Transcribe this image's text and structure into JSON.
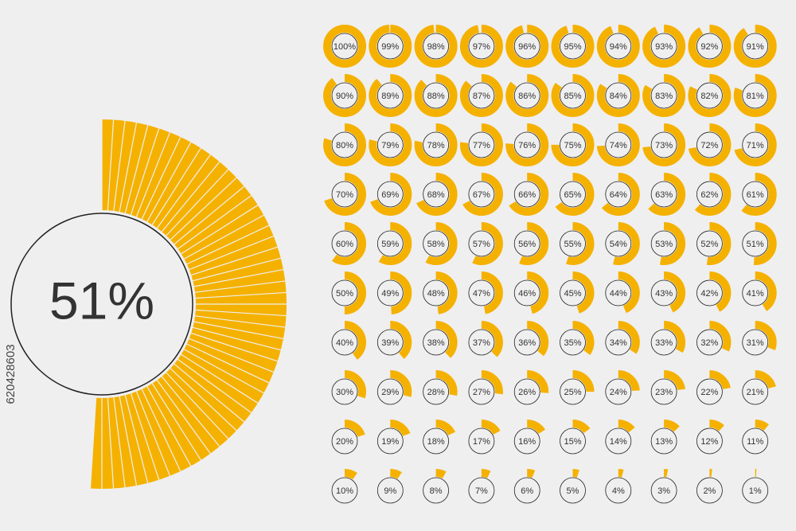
{
  "chart_data": [
    {
      "type": "gauge",
      "values": [
        51
      ],
      "value_labels": [
        "51%"
      ],
      "color": "#f5b100"
    },
    {
      "type": "gauge",
      "color": "#f5b100",
      "values": [
        100,
        99,
        98,
        97,
        96,
        95,
        94,
        93,
        92,
        91,
        90,
        89,
        88,
        87,
        86,
        85,
        84,
        83,
        82,
        81,
        80,
        79,
        78,
        77,
        76,
        75,
        74,
        73,
        72,
        71,
        70,
        69,
        68,
        67,
        66,
        65,
        64,
        63,
        62,
        61,
        60,
        59,
        58,
        57,
        56,
        55,
        54,
        53,
        52,
        51,
        50,
        49,
        48,
        47,
        46,
        45,
        44,
        43,
        42,
        41,
        40,
        39,
        38,
        37,
        36,
        35,
        34,
        33,
        32,
        31,
        30,
        29,
        28,
        27,
        26,
        25,
        24,
        23,
        22,
        21,
        20,
        19,
        18,
        17,
        16,
        15,
        14,
        13,
        12,
        11,
        10,
        9,
        8,
        7,
        6,
        5,
        4,
        3,
        2,
        1
      ],
      "value_labels": [
        "100%",
        "99%",
        "98%",
        "97%",
        "96%",
        "95%",
        "94%",
        "93%",
        "92%",
        "91%",
        "90%",
        "89%",
        "88%",
        "87%",
        "86%",
        "85%",
        "84%",
        "83%",
        "82%",
        "81%",
        "80%",
        "79%",
        "78%",
        "77%",
        "76%",
        "75%",
        "74%",
        "73%",
        "72%",
        "71%",
        "70%",
        "69%",
        "68%",
        "67%",
        "66%",
        "65%",
        "64%",
        "63%",
        "62%",
        "61%",
        "60%",
        "59%",
        "58%",
        "57%",
        "56%",
        "55%",
        "54%",
        "53%",
        "52%",
        "51%",
        "50%",
        "49%",
        "48%",
        "47%",
        "46%",
        "45%",
        "44%",
        "43%",
        "42%",
        "41%",
        "40%",
        "39%",
        "38%",
        "37%",
        "36%",
        "35%",
        "34%",
        "33%",
        "32%",
        "31%",
        "30%",
        "29%",
        "28%",
        "27%",
        "26%",
        "25%",
        "24%",
        "23%",
        "22%",
        "21%",
        "20%",
        "19%",
        "18%",
        "17%",
        "16%",
        "15%",
        "14%",
        "13%",
        "12%",
        "11%",
        "10%",
        "9%",
        "8%",
        "7%",
        "6%",
        "5%",
        "4%",
        "3%",
        "2%",
        "1%"
      ]
    }
  ],
  "watermark": "620428603"
}
